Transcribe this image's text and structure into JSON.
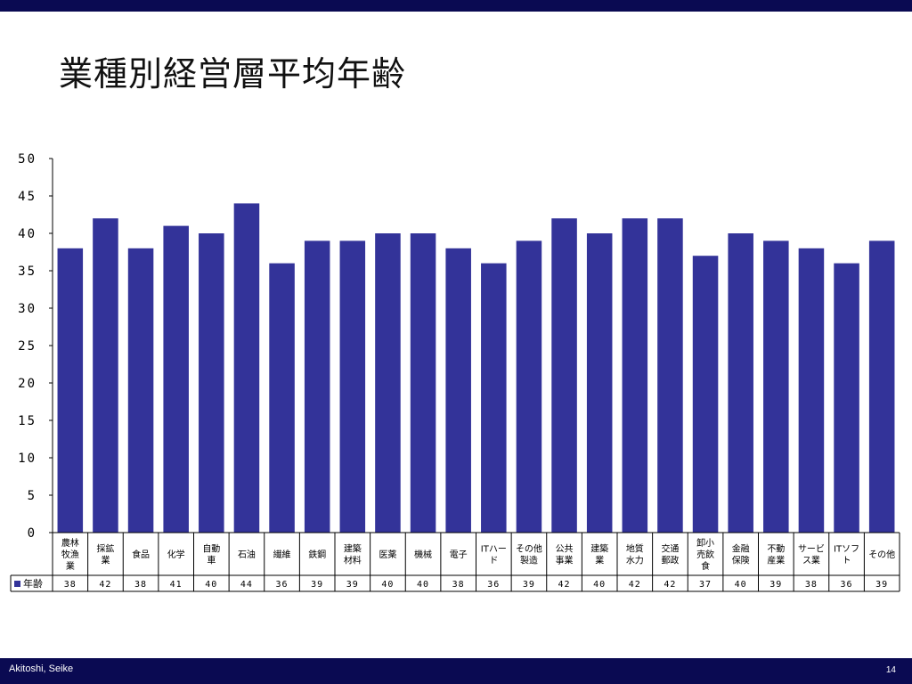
{
  "slide": {
    "title": "業種別経営層平均年齢",
    "footer_author": "Akitoshi, Seike",
    "page_number": "14"
  },
  "colors": {
    "bar": "#333399",
    "frame": "#0a0a52"
  },
  "chart_data": {
    "type": "bar",
    "title": "",
    "xlabel": "",
    "ylabel": "",
    "ylim": [
      0,
      50
    ],
    "yticks": [
      "0",
      "5",
      "10",
      "15",
      "20",
      "25",
      "30",
      "35",
      "40",
      "45",
      "50"
    ],
    "categories": [
      [
        "農林",
        "牧漁",
        "業"
      ],
      [
        "採鉱",
        "業"
      ],
      [
        "食品"
      ],
      [
        "化学"
      ],
      [
        "自動",
        "車"
      ],
      [
        "石油"
      ],
      [
        "繊維"
      ],
      [
        "鉄鋼"
      ],
      [
        "建築",
        "材料"
      ],
      [
        "医薬"
      ],
      [
        "機械"
      ],
      [
        "電子"
      ],
      [
        "ITハー",
        "ド"
      ],
      [
        "その他",
        "製造"
      ],
      [
        "公共",
        "事業"
      ],
      [
        "建築",
        "業"
      ],
      [
        "地質",
        "水力"
      ],
      [
        "交通",
        "郵政"
      ],
      [
        "卸小",
        "売飲",
        "食"
      ],
      [
        "金融",
        "保険"
      ],
      [
        "不動",
        "産業"
      ],
      [
        "サービ",
        "ス業"
      ],
      [
        "ITソフ",
        "ト"
      ],
      [
        "その他"
      ]
    ],
    "series": [
      {
        "name": "年齢",
        "values": [
          38,
          42,
          38,
          41,
          40,
          44,
          36,
          39,
          39,
          40,
          40,
          38,
          36,
          39,
          42,
          40,
          42,
          42,
          37,
          40,
          39,
          38,
          36,
          39
        ]
      }
    ],
    "grid": false,
    "legend": "left-of-data-table"
  }
}
